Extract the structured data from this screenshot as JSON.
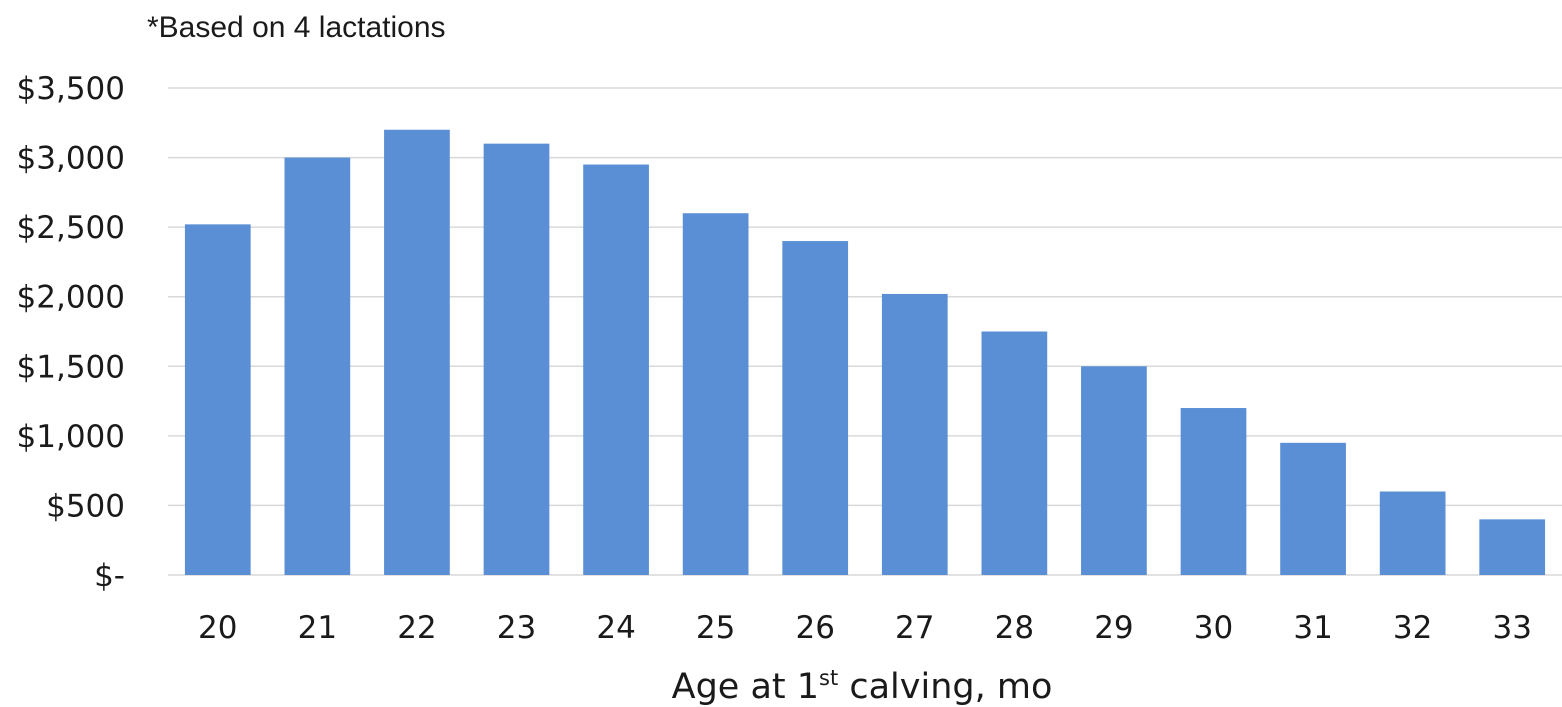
{
  "chart_data": {
    "type": "bar",
    "subtitle": "*Based on 4 lactations",
    "categories": [
      "20",
      "21",
      "22",
      "23",
      "24",
      "25",
      "26",
      "27",
      "28",
      "29",
      "30",
      "31",
      "32",
      "33"
    ],
    "values": [
      2520,
      3000,
      3200,
      3100,
      2950,
      2600,
      2400,
      2020,
      1750,
      1500,
      1200,
      950,
      600,
      400
    ],
    "xlabel": {
      "prefix": "Age at 1",
      "superscript": "st",
      "suffix": " calving, mo"
    },
    "ylabel": "",
    "ylim": [
      0,
      3500
    ],
    "yticks": [
      {
        "value": 0,
        "label": "$-"
      },
      {
        "value": 500,
        "label": "$500"
      },
      {
        "value": 1000,
        "label": "$1,000"
      },
      {
        "value": 1500,
        "label": "$1,500"
      },
      {
        "value": 2000,
        "label": "$2,000"
      },
      {
        "value": 2500,
        "label": "$2,500"
      },
      {
        "value": 3000,
        "label": "$3,000"
      },
      {
        "value": 3500,
        "label": "$3,500"
      }
    ],
    "grid": true,
    "legend": "none",
    "bar_color": "#5a8fd6",
    "grid_color": "#d9d9d9",
    "text_color": "#1a1a1a"
  }
}
